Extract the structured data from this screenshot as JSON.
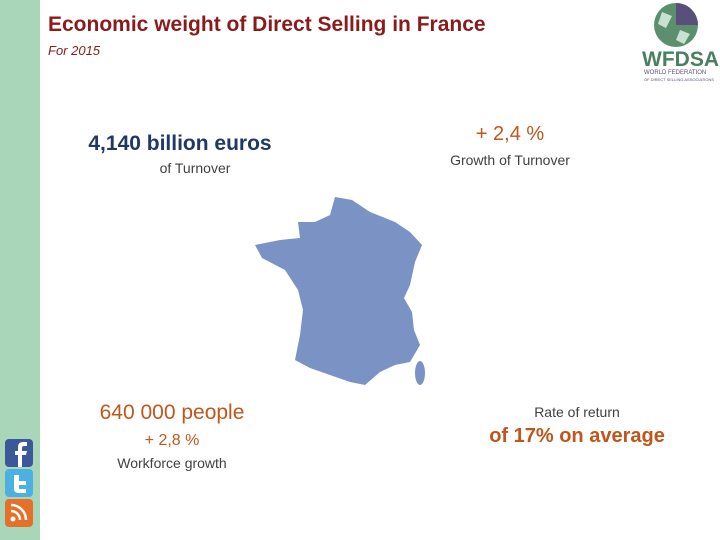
{
  "header": {
    "title": "Economic weight of Direct Selling in France",
    "subtitle": "For 2015"
  },
  "logo": {
    "name": "WFDSA",
    "line1": "WORLD FEDERATION",
    "line2": "OF DIRECT SELLING ASSOCIATIONS"
  },
  "stats": [
    {
      "value": "4,140 billion euros",
      "label": "of Turnover"
    },
    {
      "value": "+ 2,4 %",
      "label": "Growth of Turnover"
    },
    {
      "value": "640 000 people",
      "sub": "+ 2,8 %",
      "label": "Workforce growth"
    },
    {
      "label": "Rate of return",
      "value": "of 17% on average"
    }
  ]
}
